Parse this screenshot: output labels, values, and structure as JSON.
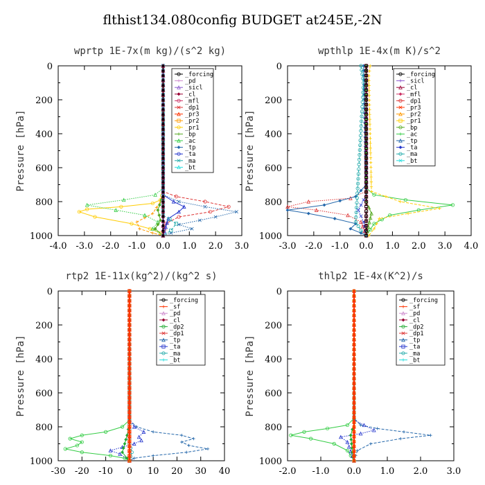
{
  "title": "flthist134.080config  BUDGET at245E,-2N",
  "colors": {
    "forcing": "#000000",
    "pd": "#cc88cc",
    "sicl": "#8855cc",
    "cl": "#990033",
    "mfl": "#cc3366",
    "dp1": "#dd3333",
    "pr3": "#ff3300",
    "pr2": "#ff9900",
    "pr1": "#ffcc00",
    "bp": "#55aa22",
    "ac": "#33cc44",
    "tp": "#2266aa",
    "ta": "#2233cc",
    "ma": "#22aaaa",
    "bt": "#22dddd",
    "sf": "#ff3300",
    "dp2": "#22aa33",
    "forcing2": "#ff3300",
    "cl2": "#ffcc00"
  },
  "chart_data": [
    {
      "type": "line",
      "title": "wprtp  1E-7x(m kg)/(s^2 kg)",
      "ylabel": "Pressure [hPa]",
      "xlim": [
        -4.0,
        3.0
      ],
      "ylim": [
        1000,
        0
      ],
      "xticks": [
        "-4.0",
        "-3.0",
        "-2.0",
        "-1.0",
        "0.0",
        "1.0",
        "2.0",
        "3.0"
      ],
      "yticks": [
        "0",
        "200",
        "400",
        "600",
        "800",
        "1000"
      ],
      "legend": [
        "_forcing",
        "_pd",
        "_sicl",
        "_cl",
        "_mfl",
        "_dp1",
        "_pr3",
        "_pr2",
        "_pr1",
        "_bp",
        "_ac",
        "_tp",
        "_ta",
        "_ma",
        "_bt"
      ],
      "series": [
        {
          "name": "_pr1",
          "color": "pr1",
          "x": [
            0,
            0,
            -0.1,
            -0.4,
            -1.6,
            -2.9,
            -3.2,
            -2.6,
            -1.2,
            -0.5,
            -0.1,
            0
          ],
          "y": [
            0,
            740,
            790,
            810,
            830,
            845,
            860,
            890,
            930,
            960,
            985,
            1000
          ]
        },
        {
          "name": "_pr2",
          "color": "pr2",
          "x": [
            0,
            0,
            -0.1,
            -0.4,
            -1.0,
            -0.9,
            -0.4,
            0
          ],
          "y": [
            0,
            760,
            800,
            870,
            920,
            960,
            985,
            1000
          ]
        },
        {
          "name": "_ac",
          "color": "ac",
          "x": [
            0,
            0,
            -0.3,
            -1.5,
            -2.9,
            -1.8,
            -0.7,
            -0.2,
            -0.4,
            0
          ],
          "y": [
            0,
            720,
            760,
            790,
            820,
            850,
            880,
            920,
            960,
            1000
          ]
        },
        {
          "name": "_bp",
          "color": "bp",
          "x": [
            0,
            0,
            -0.2,
            -0.1,
            -0.3,
            0
          ],
          "y": [
            0,
            760,
            850,
            910,
            960,
            1000
          ]
        },
        {
          "name": "_dp1",
          "color": "dp1",
          "x": [
            0,
            0,
            0.5,
            1.6,
            2.5,
            1.8,
            0.6,
            0.1,
            0
          ],
          "y": [
            0,
            740,
            770,
            800,
            830,
            860,
            890,
            930,
            1000
          ]
        },
        {
          "name": "_tp",
          "color": "tp",
          "x": [
            0,
            0,
            0.6,
            1.6,
            2.8,
            2.0,
            1.4,
            0.6,
            1.1,
            0.3,
            0
          ],
          "y": [
            0,
            760,
            800,
            830,
            860,
            890,
            910,
            935,
            960,
            985,
            1000
          ]
        },
        {
          "name": "_ta",
          "color": "ta",
          "x": [
            0,
            0,
            0.4,
            0.8,
            0.6,
            0.2,
            0
          ],
          "y": [
            0,
            760,
            800,
            830,
            860,
            900,
            1000
          ]
        },
        {
          "name": "_ma",
          "color": "ma",
          "x": [
            0,
            0,
            0.5,
            0.3,
            0
          ],
          "y": [
            0,
            880,
            930,
            970,
            1000
          ]
        },
        {
          "name": "_pd",
          "color": "pd",
          "x": [
            0,
            0
          ],
          "y": [
            0,
            1000
          ]
        },
        {
          "name": "_sicl",
          "color": "sicl",
          "x": [
            0,
            0
          ],
          "y": [
            0,
            1000
          ]
        },
        {
          "name": "_cl",
          "color": "cl",
          "x": [
            0,
            0
          ],
          "y": [
            0,
            1000
          ]
        },
        {
          "name": "_forcing",
          "color": "forcing",
          "x": [
            0,
            0
          ],
          "y": [
            0,
            1000
          ]
        }
      ]
    },
    {
      "type": "line",
      "title": "wpthlp  1E-4x(m K)/s^2",
      "ylabel": "Pressure [hPa]",
      "xlim": [
        -3.0,
        4.0
      ],
      "ylim": [
        1000,
        0
      ],
      "xticks": [
        "-3.0",
        "-2.0",
        "-1.0",
        "0.0",
        "1.0",
        "2.0",
        "3.0",
        "4.0"
      ],
      "yticks": [
        "0",
        "200",
        "400",
        "600",
        "800",
        "1000"
      ],
      "legend": [
        "_forcing",
        "_sicl",
        "_cl",
        "_mfl",
        "_dp1",
        "_pr3",
        "_pr2",
        "_pr1",
        "_bp",
        "_ac",
        "_tp",
        "_ta",
        "_ma",
        "_bt"
      ],
      "series": [
        {
          "name": "_ac",
          "color": "ac",
          "x": [
            0,
            0,
            0.3,
            1.5,
            3.3,
            2.0,
            0.9,
            0.3,
            0
          ],
          "y": [
            0,
            720,
            760,
            790,
            820,
            850,
            880,
            930,
            1000
          ]
        },
        {
          "name": "_pr1",
          "color": "pr1",
          "x": [
            0.15,
            0.1,
            0.2,
            1.3,
            2.8,
            1.6,
            0.5,
            0.3,
            0.1
          ],
          "y": [
            0,
            60,
            740,
            800,
            840,
            870,
            900,
            960,
            1000
          ]
        },
        {
          "name": "_dp1",
          "color": "dp1",
          "x": [
            0,
            0,
            -0.6,
            -2.2,
            -3.0,
            -1.9,
            -0.7,
            -0.2,
            0
          ],
          "y": [
            0,
            740,
            780,
            800,
            830,
            850,
            880,
            920,
            1000
          ]
        },
        {
          "name": "_tp",
          "color": "tp",
          "x": [
            -0.1,
            0,
            -0.4,
            -1.6,
            -3.0,
            -2.2,
            -1.2,
            -0.4,
            -0.6,
            -0.2,
            0
          ],
          "y": [
            0,
            700,
            770,
            820,
            850,
            870,
            900,
            930,
            960,
            985,
            1000
          ]
        },
        {
          "name": "_ma",
          "color": "ma",
          "x": [
            -0.2,
            -0.1,
            -0.4,
            -0.2,
            0
          ],
          "y": [
            0,
            100,
            920,
            970,
            1000
          ]
        },
        {
          "name": "_ta",
          "color": "ta",
          "x": [
            0,
            0,
            -0.3,
            -0.1,
            0
          ],
          "y": [
            0,
            760,
            850,
            920,
            1000
          ]
        },
        {
          "name": "_bp",
          "color": "bp",
          "x": [
            0,
            0,
            0.2,
            0
          ],
          "y": [
            0,
            800,
            870,
            1000
          ]
        },
        {
          "name": "_cl",
          "color": "cl",
          "x": [
            0,
            0
          ],
          "y": [
            0,
            1000
          ]
        },
        {
          "name": "_forcing",
          "color": "forcing",
          "x": [
            0,
            0
          ],
          "y": [
            0,
            1000
          ]
        }
      ]
    },
    {
      "type": "line",
      "title": "rtp2  1E-11x(kg^2)/(kg^2 s)",
      "ylabel": "Pressure [hPa]",
      "xlim": [
        -30,
        40
      ],
      "ylim": [
        1000,
        0
      ],
      "xticks": [
        "-30",
        "-20",
        "-10",
        "0",
        "10",
        "20",
        "30",
        "40"
      ],
      "yticks": [
        "0",
        "200",
        "400",
        "600",
        "800",
        "1000"
      ],
      "legend": [
        "_forcing",
        "_sf",
        "_pd",
        "_cl",
        "_dp2",
        "_dp1",
        "_tp",
        "_ta",
        "_ma",
        "_bt"
      ],
      "series": [
        {
          "name": "_dp1",
          "color": "ac",
          "x": [
            0,
            0,
            -3,
            -10,
            -20,
            -25,
            -20,
            -22,
            -27,
            -20,
            -8,
            -2,
            0
          ],
          "y": [
            0,
            760,
            800,
            830,
            850,
            870,
            890,
            910,
            930,
            950,
            970,
            985,
            1000
          ]
        },
        {
          "name": "_tp",
          "color": "tp",
          "x": [
            0,
            0,
            3,
            10,
            22,
            27,
            22,
            25,
            33,
            24,
            10,
            2,
            0
          ],
          "y": [
            0,
            760,
            800,
            830,
            850,
            870,
            890,
            910,
            930,
            950,
            970,
            985,
            1000
          ]
        },
        {
          "name": "_ta",
          "color": "ta",
          "x": [
            0,
            0,
            2,
            6,
            4,
            5,
            2,
            -3,
            -8,
            -4,
            0
          ],
          "y": [
            0,
            760,
            800,
            830,
            860,
            880,
            900,
            920,
            940,
            960,
            1000
          ]
        },
        {
          "name": "_dp2",
          "color": "dp2",
          "x": [
            0,
            0,
            -1,
            -3,
            -1,
            0
          ],
          "y": [
            0,
            780,
            850,
            950,
            985,
            1000
          ]
        },
        {
          "name": "_ma",
          "color": "ma",
          "x": [
            0,
            0,
            1,
            0
          ],
          "y": [
            0,
            900,
            950,
            1000
          ]
        },
        {
          "name": "_pd",
          "color": "pr2",
          "x": [
            0,
            0
          ],
          "y": [
            0,
            1000
          ]
        },
        {
          "name": "_sf",
          "color": "sf",
          "x": [
            0,
            0
          ],
          "y": [
            0,
            1000
          ]
        },
        {
          "name": "_forcing",
          "color": "forcing2",
          "x": [
            0,
            0
          ],
          "y": [
            0,
            1000
          ]
        }
      ]
    },
    {
      "type": "line",
      "title": "thlp2  1E-4x(K^2)/s",
      "ylabel": "Pressure [hPa]",
      "xlim": [
        -2.0,
        3.0
      ],
      "ylim": [
        1000,
        0
      ],
      "xticks": [
        "-2.0",
        "-1.0",
        "0.0",
        "1.0",
        "2.0",
        "3.0"
      ],
      "yticks": [
        "0",
        "200",
        "400",
        "600",
        "800",
        "1000"
      ],
      "legend": [
        "_forcing",
        "_sf",
        "_pd",
        "_cl",
        "_dp2",
        "_dp1",
        "_tp",
        "_ta",
        "_ma",
        "_bt"
      ],
      "series": [
        {
          "name": "_dp1",
          "color": "ac",
          "x": [
            0,
            0,
            -0.2,
            -0.8,
            -1.5,
            -1.9,
            -1.3,
            -0.6,
            -0.2,
            0
          ],
          "y": [
            0,
            750,
            790,
            810,
            830,
            850,
            870,
            900,
            940,
            1000
          ]
        },
        {
          "name": "_tp",
          "color": "tp",
          "x": [
            0,
            0,
            0.2,
            0.7,
            1.5,
            2.3,
            1.4,
            0.5,
            0.1,
            0
          ],
          "y": [
            0,
            750,
            790,
            810,
            830,
            850,
            870,
            900,
            940,
            1000
          ]
        },
        {
          "name": "_ta",
          "color": "ta",
          "x": [
            0,
            0,
            0.3,
            0.6,
            0.2,
            -0.4,
            -0.2,
            0
          ],
          "y": [
            0,
            760,
            790,
            820,
            840,
            860,
            890,
            1000
          ]
        },
        {
          "name": "_dp2",
          "color": "dp2",
          "x": [
            0,
            0,
            -0.1,
            -0.05,
            0
          ],
          "y": [
            0,
            780,
            850,
            950,
            1000
          ]
        },
        {
          "name": "_pd",
          "color": "pr2",
          "x": [
            0,
            0
          ],
          "y": [
            0,
            1000
          ]
        },
        {
          "name": "_sf",
          "color": "sf",
          "x": [
            0,
            0
          ],
          "y": [
            0,
            1000
          ]
        },
        {
          "name": "_forcing",
          "color": "forcing2",
          "x": [
            0,
            0
          ],
          "y": [
            0,
            1000
          ]
        }
      ]
    }
  ]
}
